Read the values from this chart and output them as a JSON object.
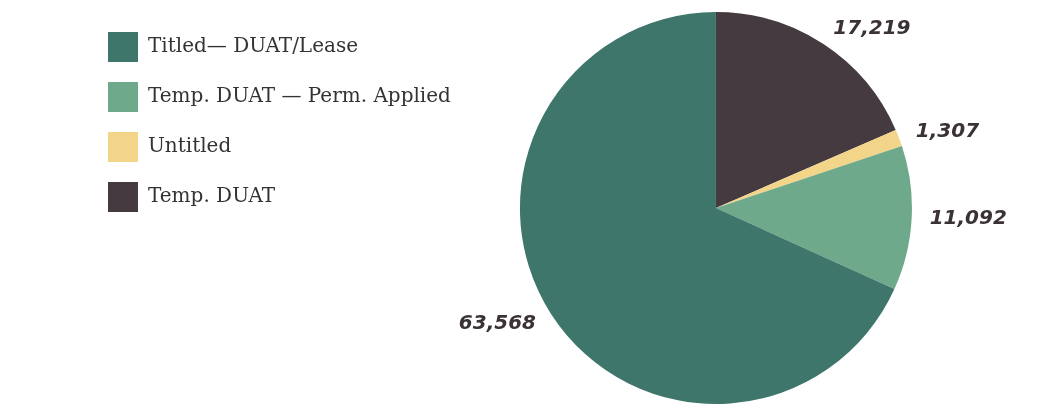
{
  "chart_data": {
    "type": "pie",
    "categories": [
      "Temp. DUAT",
      "Untitled",
      "Temp. DUAT — Perm. Applied",
      "Titled— DUAT/Lease"
    ],
    "values": [
      17219,
      1307,
      11092,
      63568
    ],
    "colors": [
      "#453a40",
      "#f3d58a",
      "#6fa98c",
      "#3e766b"
    ],
    "value_labels": [
      "17,219",
      "1,307",
      "11,092",
      "63,568"
    ],
    "legend": "top left"
  }
}
